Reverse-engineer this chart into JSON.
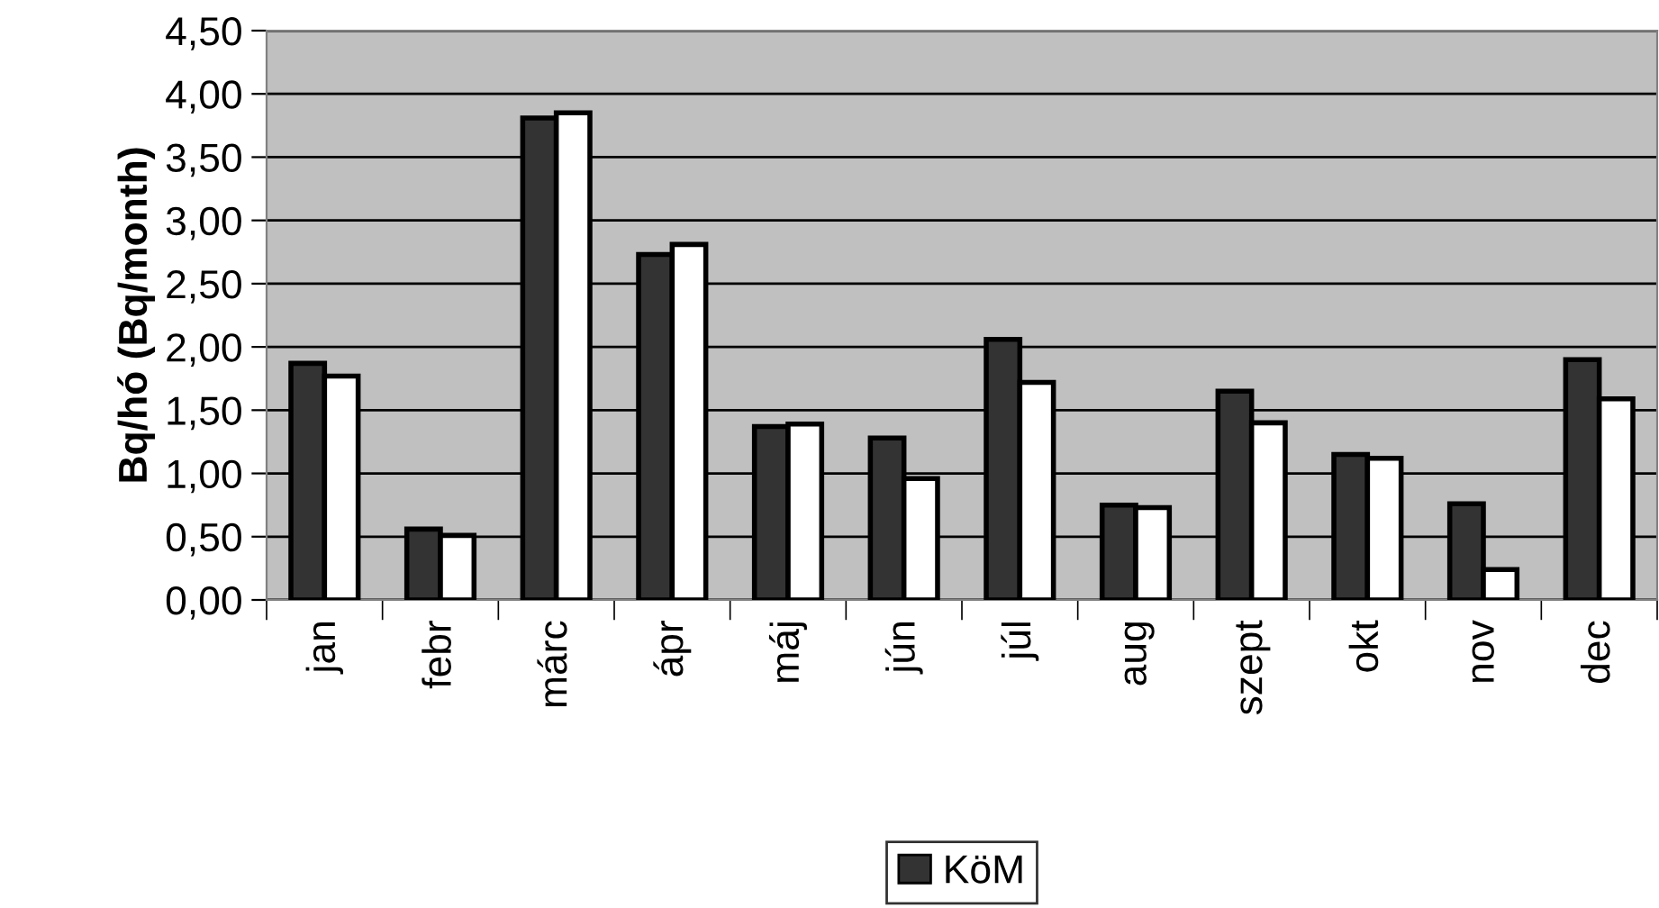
{
  "chart_data": {
    "type": "bar",
    "ylabel": "Bq/hó (Bq/month)",
    "categories": [
      "jan",
      "febr",
      "márc",
      "ápr",
      "máj",
      "jún",
      "júl",
      "aug",
      "szept",
      "okt",
      "nov",
      "dec"
    ],
    "series": [
      {
        "name": "KöM",
        "color": "#333333",
        "values": [
          1.87,
          0.56,
          3.81,
          2.73,
          1.37,
          1.28,
          2.06,
          0.75,
          1.65,
          1.15,
          0.76,
          1.9
        ]
      },
      {
        "color": "#ffffff",
        "values": [
          1.77,
          0.51,
          3.85,
          2.81,
          1.39,
          0.96,
          1.72,
          0.73,
          1.4,
          1.12,
          0.24,
          1.59
        ]
      }
    ],
    "ylim": [
      0,
      4.5
    ],
    "yticks": [
      {
        "value": 0,
        "label": "0,00"
      },
      {
        "value": 0.5,
        "label": "0,50"
      },
      {
        "value": 1,
        "label": "1,00"
      },
      {
        "value": 1.5,
        "label": "1,50"
      },
      {
        "value": 2,
        "label": "2,00"
      },
      {
        "value": 2.5,
        "label": "2,50"
      },
      {
        "value": 3,
        "label": "3,00"
      },
      {
        "value": 3.5,
        "label": "3,50"
      },
      {
        "value": 4,
        "label": "4,00"
      },
      {
        "value": 4.5,
        "label": "4,50"
      }
    ],
    "grid": "y",
    "legend": "bottom"
  }
}
